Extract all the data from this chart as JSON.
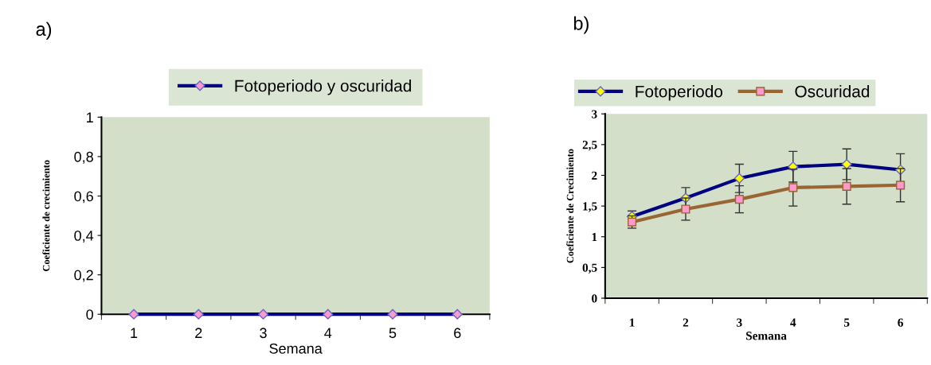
{
  "chart_data": [
    {
      "type": "line",
      "title": "a)",
      "xlabel": "Semana",
      "ylabel": "Coeficiente de crecimiento",
      "categories": [
        "1",
        "2",
        "3",
        "4",
        "5",
        "6"
      ],
      "series": [
        {
          "name": "Fotoperiodo y oscuridad",
          "color": "#000080",
          "values": [
            0,
            0,
            0,
            0,
            0,
            0
          ]
        }
      ],
      "ylim": [
        0,
        1
      ],
      "yticks": [
        0,
        {
          "value": 0.2,
          "label": "0,2"
        },
        {
          "value": 0.4,
          "label": "0,4"
        },
        {
          "value": 0.6,
          "label": "0,6"
        },
        {
          "value": 0.8,
          "label": "0,8"
        },
        1
      ],
      "grid": false,
      "legend": "top",
      "marker": "diamond",
      "line_style": "solid"
    },
    {
      "type": "line",
      "title": "b)",
      "xlabel": "Semana",
      "ylabel": "Coeficiente de Crecimiento",
      "categories": [
        "1",
        "2",
        "3",
        "4",
        "5",
        "6"
      ],
      "series": [
        {
          "name": "Fotoperiodo",
          "color": "#000080",
          "values": [
            1.33,
            1.63,
            1.95,
            2.14,
            2.18,
            2.09
          ],
          "errors": [
            0.09,
            0.17,
            0.23,
            0.25,
            0.25,
            0.26
          ],
          "marker": "diamond"
        },
        {
          "name": "Oscuridad",
          "color": "#996633",
          "values": [
            1.24,
            1.45,
            1.61,
            1.8,
            1.82,
            1.84
          ],
          "errors": [
            0.1,
            0.18,
            0.22,
            0.3,
            0.29,
            0.27
          ],
          "marker": "square"
        }
      ],
      "ylim": [
        0,
        3
      ],
      "yticks": [
        0,
        {
          "value": 0.5,
          "label": "0,5"
        },
        1,
        {
          "value": 1.5,
          "label": "1,5"
        },
        2,
        {
          "value": 2.5,
          "label": "2,5"
        },
        3
      ],
      "grid": false,
      "legend": "top",
      "line_style": "solid"
    }
  ]
}
